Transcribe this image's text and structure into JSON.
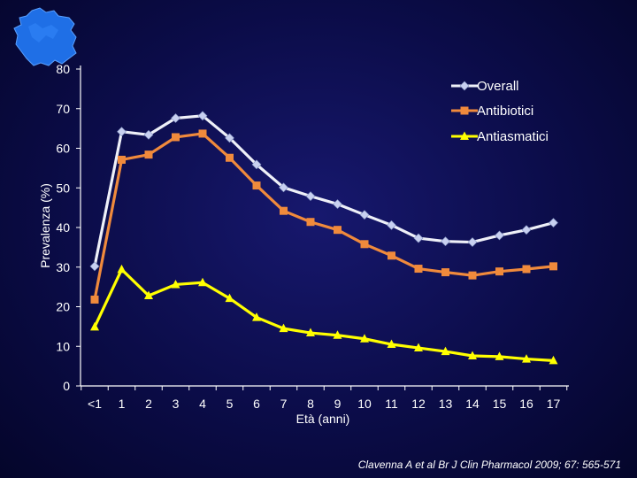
{
  "chart_data": {
    "type": "line",
    "title": "",
    "xlabel": "Età  (anni)",
    "ylabel": "Prevalenza (%)",
    "ylim": [
      0,
      80
    ],
    "yticks": [
      0,
      10,
      20,
      30,
      40,
      50,
      60,
      70,
      80
    ],
    "categories": [
      "<1",
      "1",
      "2",
      "3",
      "4",
      "5",
      "6",
      "7",
      "8",
      "9",
      "10",
      "11",
      "12",
      "13",
      "14",
      "15",
      "16",
      "17"
    ],
    "legend_position": "top-right",
    "grid": false,
    "series": [
      {
        "name": "Overall",
        "marker": "diamond",
        "line_color": "#eef0f8",
        "marker_color": "#c8d0f0",
        "values": [
          30.2,
          64.2,
          63.4,
          67.6,
          68.2,
          62.6,
          55.9,
          50.1,
          47.9,
          45.9,
          43.2,
          40.6,
          37.3,
          36.5,
          36.3,
          38.0,
          39.4,
          41.2
        ]
      },
      {
        "name": "Antibiotici",
        "marker": "square",
        "line_color": "#f08a3c",
        "marker_color": "#f08a3c",
        "values": [
          21.8,
          57.1,
          58.4,
          62.8,
          63.7,
          57.6,
          50.6,
          44.2,
          41.4,
          39.4,
          35.8,
          32.9,
          29.6,
          28.7,
          27.9,
          28.9,
          29.5,
          30.2
        ]
      },
      {
        "name": "Antiasmatici",
        "marker": "triangle",
        "line_color": "#ffff00",
        "marker_color": "#ffff00",
        "values": [
          14.9,
          29.4,
          22.8,
          25.6,
          26.1,
          22.1,
          17.3,
          14.5,
          13.4,
          12.8,
          11.9,
          10.5,
          9.6,
          8.7,
          7.6,
          7.4,
          6.8,
          6.4
        ]
      }
    ]
  },
  "citation": "Clavenna A et al Br J Clin Pharmacol 2009; 67: 565-571",
  "logo": {
    "name": "lombardia-map",
    "color": "#1f6fe6"
  }
}
